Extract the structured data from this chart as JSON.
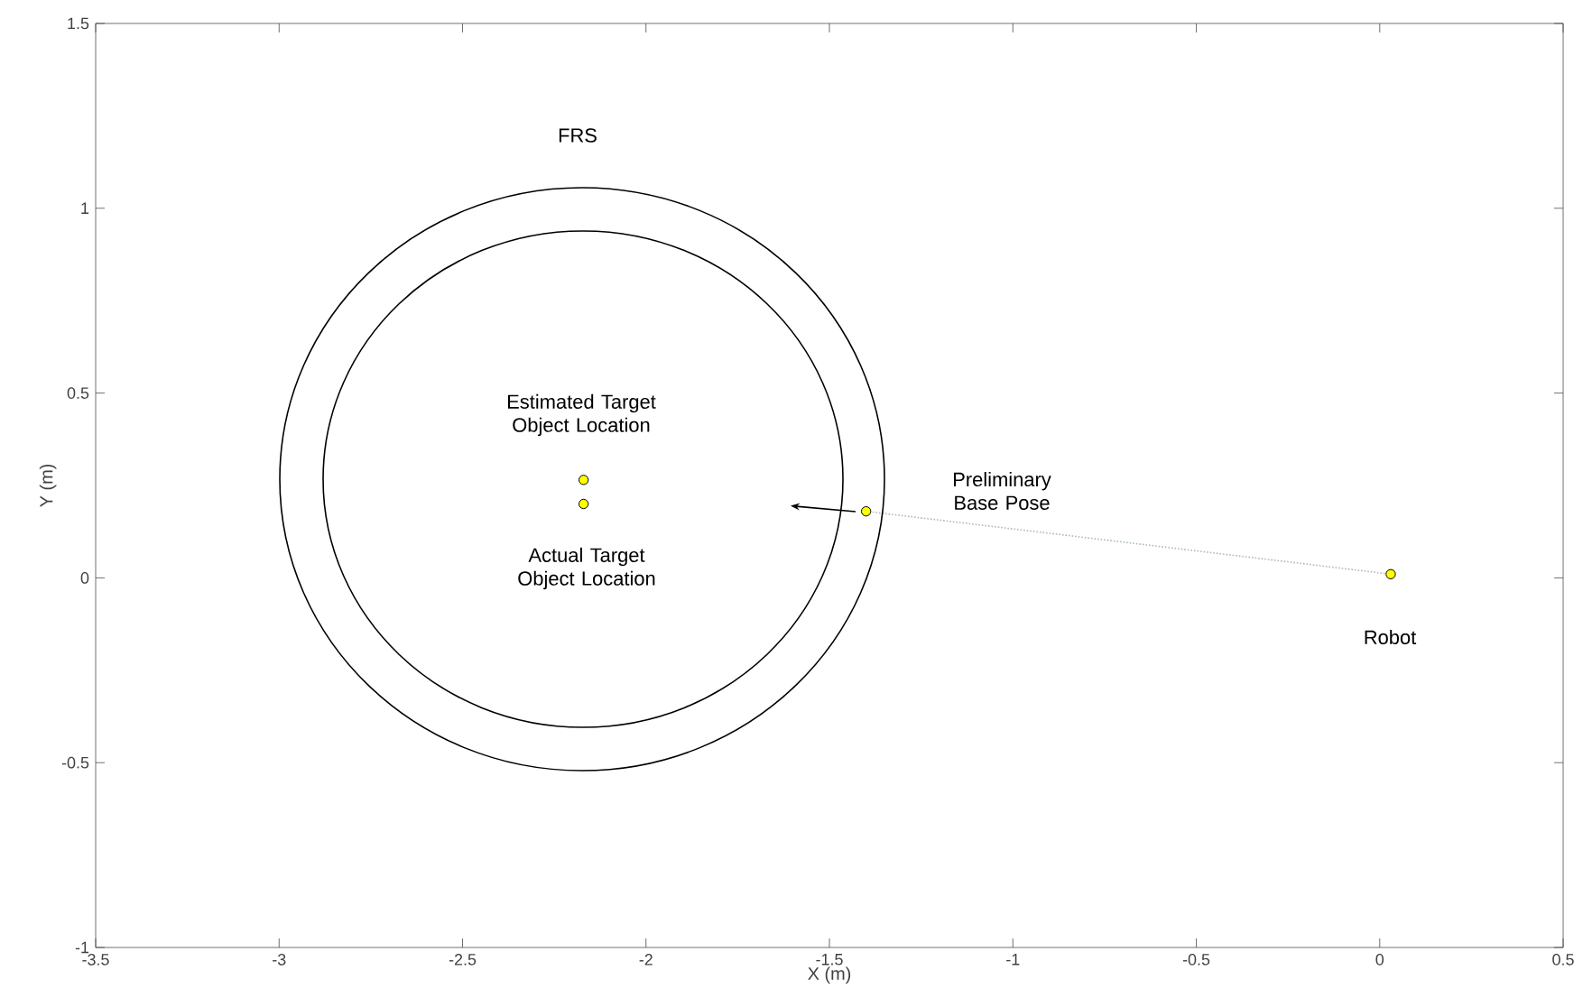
{
  "chart_data": {
    "type": "scatter",
    "xlabel": "X (m)",
    "ylabel": "Y (m)",
    "xlim": [
      -3.5,
      0.5
    ],
    "ylim": [
      -1,
      1.5
    ],
    "xticks": [
      -3.5,
      -3,
      -2.5,
      -2,
      -1.5,
      -1,
      -0.5,
      0,
      0.5
    ],
    "yticks": [
      -1,
      -0.5,
      0,
      0.5,
      1,
      1.5
    ],
    "grid": false,
    "series": [
      {
        "type": "line",
        "color": "#a8b8c0",
        "marker": "none",
        "line_style": "dotted",
        "x": [
          -1.4,
          0.03
        ],
        "values": [
          0.18,
          0.01
        ]
      },
      {
        "color": "#ffff00",
        "marker": "circle",
        "x": [
          -2.17,
          -2.17,
          -1.4,
          0.03
        ],
        "values": [
          0.265,
          0.2,
          0.18,
          0.01
        ]
      }
    ],
    "annotations": [
      "FRS",
      "Estimated Target Object Location",
      "Actual Target Object Location",
      "Preliminary Base Pose",
      "Robot"
    ]
  }
}
